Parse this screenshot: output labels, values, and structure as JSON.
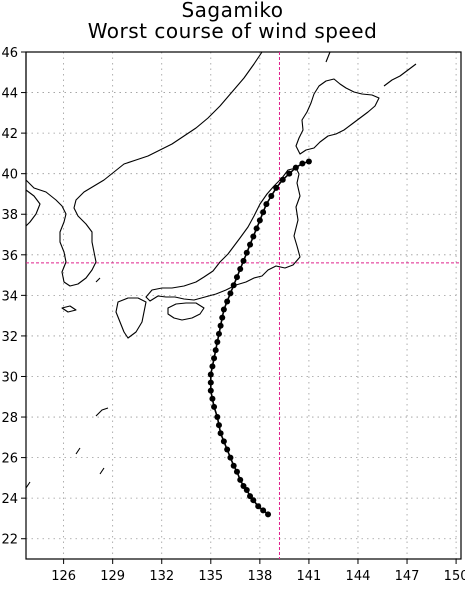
{
  "title": {
    "line1": "Sagamiko",
    "line2": "Worst course of wind speed"
  },
  "colors": {
    "grid": "#9a9a9a",
    "crosshair": "#e0208c",
    "track": "#000000",
    "coast": "#000000"
  },
  "map": {
    "lon_range": [
      123.7,
      150.3
    ],
    "lat_range": [
      21.0,
      46.0
    ],
    "lon_ticks": [
      126,
      129,
      132,
      135,
      138,
      141,
      144,
      147,
      150
    ],
    "lat_ticks": [
      22,
      24,
      26,
      28,
      30,
      32,
      34,
      36,
      38,
      40,
      42,
      44,
      46
    ],
    "grid": "dotted",
    "site": {
      "name": "Sagamiko",
      "lon": 139.2,
      "lat": 35.6
    }
  },
  "track": [
    [
      138.5,
      23.2
    ],
    [
      138.2,
      23.4
    ],
    [
      137.9,
      23.6
    ],
    [
      137.6,
      23.9
    ],
    [
      137.4,
      24.1
    ],
    [
      137.2,
      24.4
    ],
    [
      137.0,
      24.6
    ],
    [
      136.8,
      24.9
    ],
    [
      136.6,
      25.3
    ],
    [
      136.4,
      25.6
    ],
    [
      136.2,
      26.0
    ],
    [
      136.0,
      26.4
    ],
    [
      135.8,
      26.8
    ],
    [
      135.6,
      27.2
    ],
    [
      135.5,
      27.6
    ],
    [
      135.4,
      28.0
    ],
    [
      135.2,
      28.5
    ],
    [
      135.1,
      28.9
    ],
    [
      135.0,
      29.3
    ],
    [
      135.0,
      29.7
    ],
    [
      135.0,
      30.1
    ],
    [
      135.1,
      30.5
    ],
    [
      135.2,
      30.9
    ],
    [
      135.3,
      31.3
    ],
    [
      135.4,
      31.7
    ],
    [
      135.5,
      32.1
    ],
    [
      135.6,
      32.5
    ],
    [
      135.7,
      32.9
    ],
    [
      135.8,
      33.3
    ],
    [
      136.0,
      33.7
    ],
    [
      136.2,
      34.1
    ],
    [
      136.4,
      34.5
    ],
    [
      136.6,
      34.9
    ],
    [
      136.8,
      35.3
    ],
    [
      137.0,
      35.7
    ],
    [
      137.2,
      36.1
    ],
    [
      137.4,
      36.5
    ],
    [
      137.6,
      36.9
    ],
    [
      137.8,
      37.3
    ],
    [
      138.0,
      37.7
    ],
    [
      138.2,
      38.1
    ],
    [
      138.4,
      38.5
    ],
    [
      138.7,
      38.9
    ],
    [
      139.0,
      39.3
    ],
    [
      139.4,
      39.7
    ],
    [
      139.8,
      40.0
    ],
    [
      140.2,
      40.3
    ],
    [
      140.6,
      40.5
    ],
    [
      141.0,
      40.6
    ]
  ]
}
